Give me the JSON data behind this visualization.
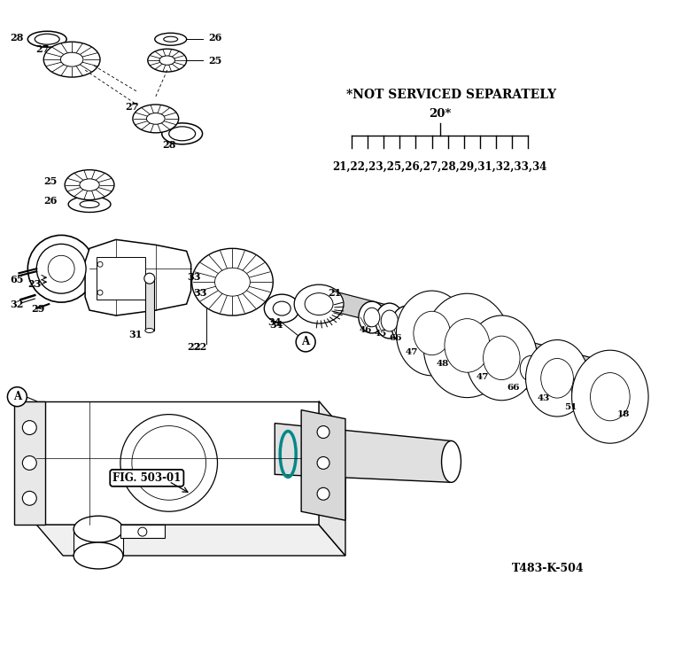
{
  "bg": "#ffffff",
  "lc": "#000000",
  "not_serviced": "*NOT SERVICED SEPARATELY",
  "part20": "20*",
  "subparts": "21,22,23,25,26,27,28,29,31,32,33,34",
  "fig_ref": "FIG. 503-01",
  "model": "T483-K-504",
  "figsize": [
    7.61,
    7.38
  ],
  "dpi": 100
}
